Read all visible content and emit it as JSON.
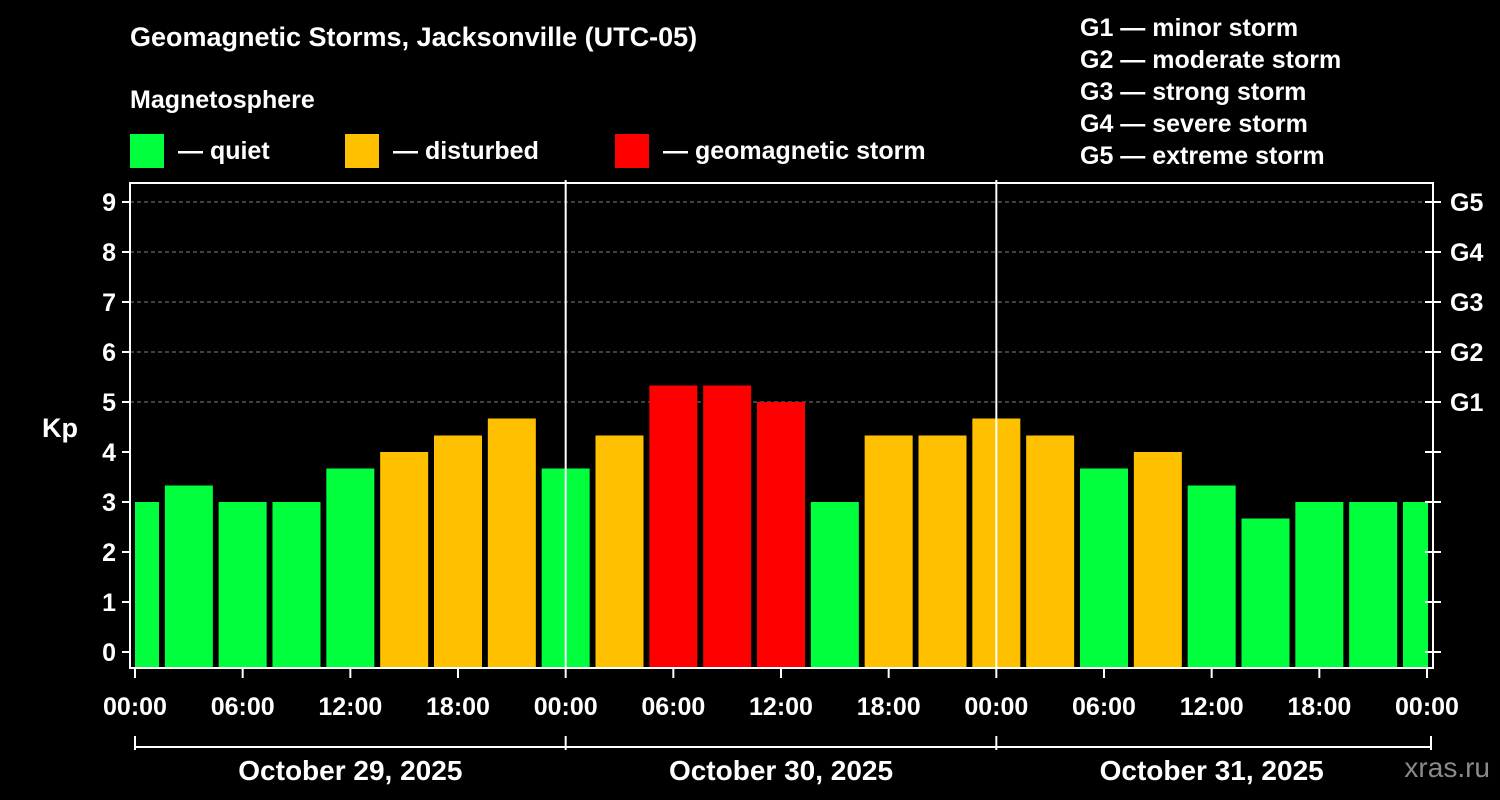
{
  "chart_data": {
    "type": "bar",
    "title": "Geomagnetic Storms, Jacksonville (UTC-05)",
    "ylabel": "Kp",
    "ylim": [
      0,
      9
    ],
    "y_ticks": [
      "0",
      "1",
      "2",
      "3",
      "4",
      "5",
      "6",
      "7",
      "8",
      "9"
    ],
    "g_ticks": [
      {
        "label": "G1",
        "kp": 5
      },
      {
        "label": "G2",
        "kp": 6
      },
      {
        "label": "G3",
        "kp": 7
      },
      {
        "label": "G4",
        "kp": 8
      },
      {
        "label": "G5",
        "kp": 9
      }
    ],
    "x_tick_labels": [
      "00:00",
      "06:00",
      "12:00",
      "18:00",
      "00:00",
      "06:00",
      "12:00",
      "18:00",
      "00:00",
      "06:00",
      "12:00",
      "18:00",
      "00:00"
    ],
    "days": [
      "October 29, 2025",
      "October 30, 2025",
      "October 31, 2025"
    ],
    "bars": [
      {
        "time": "Oct 29 00:00",
        "kp": 3.0,
        "level": "quiet"
      },
      {
        "time": "Oct 29 03:00",
        "kp": 3.33,
        "level": "quiet"
      },
      {
        "time": "Oct 29 06:00",
        "kp": 3.0,
        "level": "quiet"
      },
      {
        "time": "Oct 29 09:00",
        "kp": 3.0,
        "level": "quiet"
      },
      {
        "time": "Oct 29 12:00",
        "kp": 3.67,
        "level": "quiet"
      },
      {
        "time": "Oct 29 15:00",
        "kp": 4.0,
        "level": "disturbed"
      },
      {
        "time": "Oct 29 18:00",
        "kp": 4.33,
        "level": "disturbed"
      },
      {
        "time": "Oct 29 21:00",
        "kp": 4.67,
        "level": "disturbed"
      },
      {
        "time": "Oct 30 00:00",
        "kp": 3.67,
        "level": "quiet"
      },
      {
        "time": "Oct 30 03:00",
        "kp": 4.33,
        "level": "disturbed"
      },
      {
        "time": "Oct 30 06:00",
        "kp": 5.33,
        "level": "storm"
      },
      {
        "time": "Oct 30 09:00",
        "kp": 5.33,
        "level": "storm"
      },
      {
        "time": "Oct 30 12:00",
        "kp": 5.0,
        "level": "storm"
      },
      {
        "time": "Oct 30 15:00",
        "kp": 3.0,
        "level": "quiet"
      },
      {
        "time": "Oct 30 18:00",
        "kp": 4.33,
        "level": "disturbed"
      },
      {
        "time": "Oct 30 21:00",
        "kp": 4.33,
        "level": "disturbed"
      },
      {
        "time": "Oct 31 00:00",
        "kp": 4.67,
        "level": "disturbed"
      },
      {
        "time": "Oct 31 03:00",
        "kp": 4.33,
        "level": "disturbed"
      },
      {
        "time": "Oct 31 06:00",
        "kp": 3.67,
        "level": "quiet"
      },
      {
        "time": "Oct 31 09:00",
        "kp": 4.0,
        "level": "disturbed"
      },
      {
        "time": "Oct 31 12:00",
        "kp": 3.33,
        "level": "quiet"
      },
      {
        "time": "Oct 31 15:00",
        "kp": 2.67,
        "level": "quiet"
      },
      {
        "time": "Oct 31 18:00",
        "kp": 3.0,
        "level": "quiet"
      },
      {
        "time": "Oct 31 21:00",
        "kp": 3.0,
        "level": "quiet"
      },
      {
        "time": "Nov 01 00:00",
        "kp": 3.0,
        "level": "quiet"
      }
    ]
  },
  "colors": {
    "quiet": "#00ff3c",
    "disturbed": "#ffc000",
    "storm": "#ff0000",
    "background": "#000000",
    "grid": "#808080",
    "watermark": "#8a8a8a"
  },
  "legend": {
    "heading": "Magnetosphere",
    "items": [
      {
        "key": "quiet",
        "label": "— quiet"
      },
      {
        "key": "disturbed",
        "label": "— disturbed"
      },
      {
        "key": "storm",
        "label": "— geomagnetic storm"
      }
    ]
  },
  "g_levels": [
    "G1 — minor storm",
    "G2 — moderate storm",
    "G3 — strong storm",
    "G4 — severe storm",
    "G5 — extreme storm"
  ],
  "watermark": "xras.ru"
}
